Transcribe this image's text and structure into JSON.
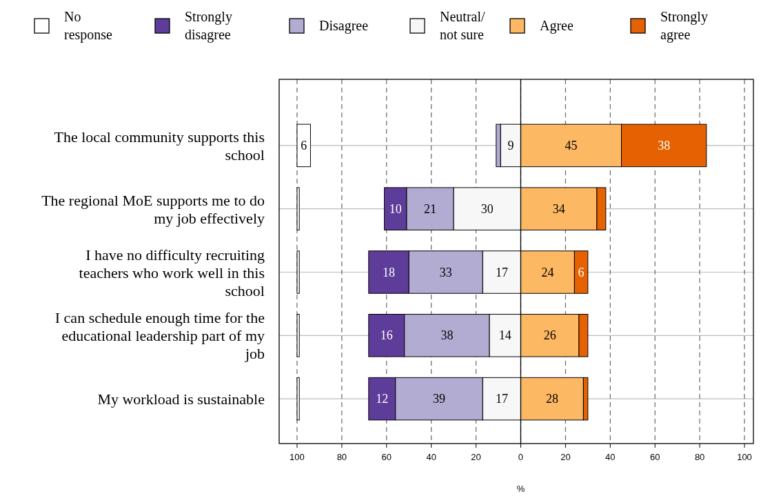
{
  "chart_data": {
    "type": "bar",
    "orientation": "horizontal",
    "categories": [
      "The local community supports this school",
      "The regional MoE supports me to do my job effectively",
      "I have no difficulty recruiting teachers who work well in this school",
      "I can schedule enough time for the educational leadership part of my job",
      "My workload is sustainable"
    ],
    "series": [
      {
        "name": "No response",
        "color": "#ffffff",
        "base": [
          -100,
          -100,
          -100,
          -100,
          -100
        ],
        "values": [
          6,
          1,
          1,
          1,
          1
        ],
        "value_labels": [
          "6",
          null,
          null,
          null,
          null
        ]
      },
      {
        "name": "Strongly disagree",
        "color": "#5e3c99",
        "base": [
          null,
          -61,
          -68,
          -68,
          -68
        ],
        "values": [
          null,
          10,
          18,
          16,
          12
        ],
        "value_labels": [
          null,
          "10",
          "18",
          "16",
          "12"
        ]
      },
      {
        "name": "Disagree",
        "color": "#b2abd2",
        "base": [
          -11,
          -51,
          -50,
          -52,
          -56
        ],
        "values": [
          2,
          21,
          33,
          38,
          39
        ],
        "value_labels": [
          null,
          "21",
          "33",
          "38",
          "39"
        ]
      },
      {
        "name": "Neutral/ not sure",
        "color": "#f7f7f7",
        "base": [
          -9,
          -30,
          -17,
          -14,
          -17
        ],
        "values": [
          9,
          30,
          17,
          14,
          17
        ],
        "value_labels": [
          "9",
          "30",
          "17",
          "14",
          "17"
        ]
      },
      {
        "name": "Agree",
        "color": "#fdb863",
        "base": [
          0,
          0,
          0,
          0,
          0
        ],
        "values": [
          45,
          34,
          24,
          26,
          28
        ],
        "value_labels": [
          "45",
          "34",
          "24",
          "26",
          "28"
        ]
      },
      {
        "name": "Strongly agree",
        "color": "#e66101",
        "base": [
          45,
          34,
          24,
          26,
          28
        ],
        "values": [
          38,
          4,
          6,
          4,
          2
        ],
        "value_labels": [
          "38",
          null,
          "6",
          null,
          null
        ]
      }
    ],
    "xlabel": "%",
    "xlim": [
      -108,
      104
    ],
    "xticks": [
      {
        "value": -100,
        "label": "100"
      },
      {
        "value": -80,
        "label": "80"
      },
      {
        "value": -60,
        "label": "60"
      },
      {
        "value": -40,
        "label": "40"
      },
      {
        "value": -20,
        "label": "20"
      },
      0,
      20,
      40,
      60,
      80,
      100
    ],
    "grid": true,
    "legend": "top",
    "ref_lines": [
      {
        "axis": "x",
        "value": 0,
        "color": "#000000"
      }
    ]
  }
}
